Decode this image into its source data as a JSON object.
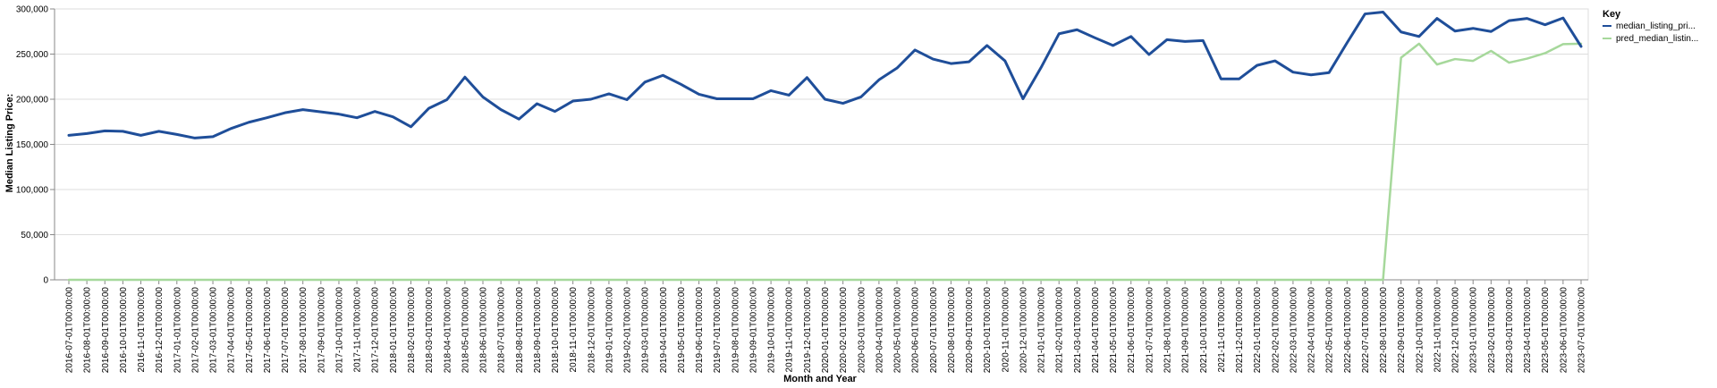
{
  "chart_data": {
    "type": "line",
    "xlabel": "Month and Year",
    "ylabel": "Median Listing Price:",
    "ylim": [
      0,
      300000
    ],
    "y_ticks": [
      "0",
      "50,000",
      "100,000",
      "150,000",
      "200,000",
      "250,000",
      "300,000"
    ],
    "y_tick_values": [
      0,
      50000,
      100000,
      150000,
      200000,
      250000,
      300000
    ],
    "grid": true,
    "legend_placement": "right",
    "legend_title": "Key",
    "x": [
      "2016-07-01T00:00:00",
      "2016-08-01T00:00:00",
      "2016-09-01T00:00:00",
      "2016-10-01T00:00:00",
      "2016-11-01T00:00:00",
      "2016-12-01T00:00:00",
      "2017-01-01T00:00:00",
      "2017-02-01T00:00:00",
      "2017-03-01T00:00:00",
      "2017-04-01T00:00:00",
      "2017-05-01T00:00:00",
      "2017-06-01T00:00:00",
      "2017-07-01T00:00:00",
      "2017-08-01T00:00:00",
      "2017-09-01T00:00:00",
      "2017-10-01T00:00:00",
      "2017-11-01T00:00:00",
      "2017-12-01T00:00:00",
      "2018-01-01T00:00:00",
      "2018-02-01T00:00:00",
      "2018-03-01T00:00:00",
      "2018-04-01T00:00:00",
      "2018-05-01T00:00:00",
      "2018-06-01T00:00:00",
      "2018-07-01T00:00:00",
      "2018-08-01T00:00:00",
      "2018-09-01T00:00:00",
      "2018-10-01T00:00:00",
      "2018-11-01T00:00:00",
      "2018-12-01T00:00:00",
      "2019-01-01T00:00:00",
      "2019-02-01T00:00:00",
      "2019-03-01T00:00:00",
      "2019-04-01T00:00:00",
      "2019-05-01T00:00:00",
      "2019-06-01T00:00:00",
      "2019-07-01T00:00:00",
      "2019-08-01T00:00:00",
      "2019-09-01T00:00:00",
      "2019-10-01T00:00:00",
      "2019-11-01T00:00:00",
      "2019-12-01T00:00:00",
      "2020-01-01T00:00:00",
      "2020-02-01T00:00:00",
      "2020-03-01T00:00:00",
      "2020-04-01T00:00:00",
      "2020-05-01T00:00:00",
      "2020-06-01T00:00:00",
      "2020-07-01T00:00:00",
      "2020-08-01T00:00:00",
      "2020-09-01T00:00:00",
      "2020-10-01T00:00:00",
      "2020-11-01T00:00:00",
      "2020-12-01T00:00:00",
      "2021-01-01T00:00:00",
      "2021-02-01T00:00:00",
      "2021-03-01T00:00:00",
      "2021-04-01T00:00:00",
      "2021-05-01T00:00:00",
      "2021-06-01T00:00:00",
      "2021-07-01T00:00:00",
      "2021-08-01T00:00:00",
      "2021-09-01T00:00:00",
      "2021-10-01T00:00:00",
      "2021-11-01T00:00:00",
      "2021-12-01T00:00:00",
      "2022-01-01T00:00:00",
      "2022-02-01T00:00:00",
      "2022-03-01T00:00:00",
      "2022-04-01T00:00:00",
      "2022-05-01T00:00:00",
      "2022-06-01T00:00:00",
      "2022-07-01T00:00:00",
      "2022-08-01T00:00:00",
      "2022-09-01T00:00:00",
      "2022-10-01T00:00:00",
      "2022-11-01T00:00:00",
      "2022-12-01T00:00:00",
      "2023-01-01T00:00:00",
      "2023-02-01T00:00:00",
      "2023-03-01T00:00:00",
      "2023-04-01T00:00:00",
      "2023-05-01T00:00:00",
      "2023-06-01T00:00:00",
      "2023-07-01T00:00:00"
    ],
    "series": [
      {
        "name": "median_listing_pri...",
        "color": "#1f4e99",
        "values": [
          160000,
          162000,
          165000,
          164500,
          160000,
          164500,
          161000,
          157000,
          158500,
          167500,
          174500,
          179500,
          185000,
          188500,
          186000,
          183500,
          179500,
          186500,
          180500,
          169500,
          190000,
          199500,
          224500,
          202500,
          188500,
          178000,
          195000,
          186500,
          198000,
          200000,
          206000,
          199500,
          219000,
          226500,
          216500,
          205500,
          200500,
          200500,
          200500,
          209500,
          204500,
          224000,
          200000,
          195500,
          202500,
          221500,
          234500,
          254500,
          244500,
          239500,
          241500,
          259500,
          242500,
          200500,
          235000,
          272500,
          277000,
          268000,
          259500,
          269500,
          249500,
          266000,
          264000,
          265000,
          222500,
          222500,
          237500,
          242500,
          230000,
          227000,
          229500,
          262500,
          294500,
          296500,
          274500,
          269500,
          289500,
          275500,
          278500,
          275000,
          287000,
          289500,
          282500,
          290000,
          258500
        ]
      },
      {
        "name": "pred_median_listin...",
        "color": "#a6d89b",
        "values": [
          0,
          0,
          0,
          0,
          0,
          0,
          0,
          0,
          0,
          0,
          0,
          0,
          0,
          0,
          0,
          0,
          0,
          0,
          0,
          0,
          0,
          0,
          0,
          0,
          0,
          0,
          0,
          0,
          0,
          0,
          0,
          0,
          0,
          0,
          0,
          0,
          0,
          0,
          0,
          0,
          0,
          0,
          0,
          0,
          0,
          0,
          0,
          0,
          0,
          0,
          0,
          0,
          0,
          0,
          0,
          0,
          0,
          0,
          0,
          0,
          0,
          0,
          0,
          0,
          0,
          0,
          0,
          0,
          0,
          0,
          0,
          0,
          0,
          0,
          246000,
          261500,
          238500,
          244500,
          242500,
          253500,
          240500,
          245000,
          251000,
          261000,
          261500
        ]
      }
    ]
  }
}
